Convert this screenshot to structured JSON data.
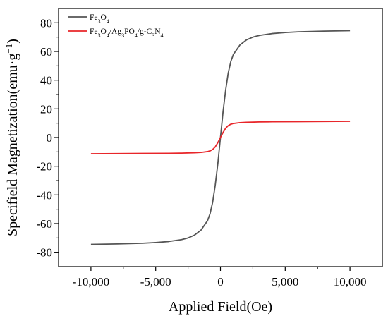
{
  "chart_data": {
    "type": "line",
    "title": "",
    "xlabel": "Applied Field(Oe)",
    "ylabel_parts": [
      {
        "t": "Specifield Magnetization(emu·g",
        "sup": false
      },
      {
        "t": "−1",
        "sup": true
      },
      {
        "t": ")",
        "sup": false
      }
    ],
    "xlim": [
      -12500,
      12500
    ],
    "ylim": [
      -90,
      90
    ],
    "xticks": [
      -10000,
      -5000,
      0,
      5000,
      10000
    ],
    "xtick_labels": [
      "-10,000",
      "-5,000",
      "0",
      "5,000",
      "10,000"
    ],
    "yticks": [
      -80,
      -60,
      -40,
      -20,
      0,
      20,
      40,
      60,
      80
    ],
    "ytick_labels": [
      "-80",
      "-60",
      "-40",
      "-20",
      "0",
      "20",
      "40",
      "60",
      "80"
    ],
    "grid": false,
    "legend_position": "top-left",
    "series": [
      {
        "name_parts": [
          {
            "t": "Fe",
            "sub": false
          },
          {
            "t": "3",
            "sub": true
          },
          {
            "t": "O",
            "sub": false
          },
          {
            "t": "4",
            "sub": true
          }
        ],
        "color": "#555555",
        "x": [
          -10000,
          -8000,
          -6000,
          -5000,
          -4000,
          -3000,
          -2500,
          -2000,
          -1500,
          -1000,
          -800,
          -600,
          -400,
          -200,
          -100,
          0,
          100,
          200,
          400,
          600,
          800,
          1000,
          1500,
          2000,
          2500,
          3000,
          4000,
          5000,
          6000,
          8000,
          10000
        ],
        "y": [
          -74.5,
          -74.2,
          -73.7,
          -73.2,
          -72.5,
          -71.2,
          -70.0,
          -68.0,
          -64.5,
          -58.0,
          -53.0,
          -45.0,
          -33.0,
          -18.0,
          -9.0,
          0.0,
          9.0,
          18.0,
          33.0,
          45.0,
          53.0,
          58.0,
          64.5,
          68.0,
          70.0,
          71.2,
          72.5,
          73.2,
          73.7,
          74.2,
          74.5
        ]
      },
      {
        "name_parts": [
          {
            "t": "Fe",
            "sub": false
          },
          {
            "t": "3",
            "sub": true
          },
          {
            "t": "O",
            "sub": false
          },
          {
            "t": "4",
            "sub": true
          },
          {
            "t": "/Ag",
            "sub": false
          },
          {
            "t": "3",
            "sub": true
          },
          {
            "t": "PO",
            "sub": false
          },
          {
            "t": "4",
            "sub": true
          },
          {
            "t": "/g-C",
            "sub": false
          },
          {
            "t": "3",
            "sub": true
          },
          {
            "t": "N",
            "sub": false
          },
          {
            "t": "4",
            "sub": true
          }
        ],
        "color": "#e8262a",
        "x": [
          -10000,
          -8000,
          -6000,
          -4000,
          -3000,
          -2000,
          -1500,
          -1000,
          -800,
          -600,
          -400,
          -200,
          0,
          200,
          400,
          600,
          800,
          1000,
          1500,
          2000,
          3000,
          4000,
          6000,
          8000,
          10000
        ],
        "y": [
          -11.3,
          -11.2,
          -11.1,
          -11.0,
          -10.9,
          -10.6,
          -10.4,
          -9.8,
          -9.3,
          -8.3,
          -6.5,
          -3.5,
          0.0,
          3.5,
          6.5,
          8.3,
          9.3,
          9.8,
          10.4,
          10.6,
          10.9,
          11.0,
          11.1,
          11.2,
          11.3
        ]
      }
    ]
  }
}
